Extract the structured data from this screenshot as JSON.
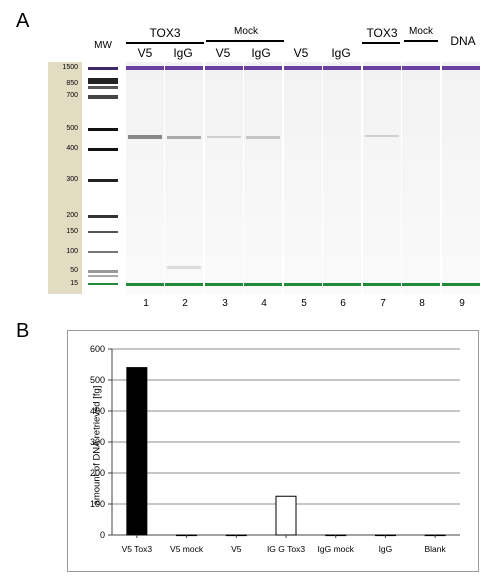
{
  "panel_a": {
    "letter": "A",
    "headers": {
      "mw": "MW",
      "tox3_left": "TOX3",
      "mock_left": "Mock",
      "v5_1": "V5",
      "igg_1": "IgG",
      "v5_2": "V5",
      "igg_2": "IgG",
      "v5_3": "V5",
      "igg_3": "IgG",
      "tox3_right": "TOX3",
      "mock_right": "Mock",
      "dna": "DNA"
    },
    "mw_labels": [
      "1500",
      "850",
      "700",
      "500",
      "400",
      "300",
      "200",
      "150",
      "100",
      "50",
      "15"
    ],
    "lane_numbers": [
      "1",
      "2",
      "3",
      "4",
      "5",
      "6",
      "7",
      "8",
      "9"
    ],
    "colors": {
      "upper_marker": "#6a3fa0",
      "lower_marker": "#1f8a3a",
      "ladder_bg": "#e2dcc3"
    }
  },
  "panel_b": {
    "letter": "B",
    "chart_data": {
      "type": "bar",
      "categories": [
        "V5 Tox3",
        "V5 mock",
        "V5",
        "IG G Tox3",
        "IgG mock",
        "IgG",
        "Blank"
      ],
      "values": [
        540,
        0,
        0,
        125,
        0,
        0,
        0
      ],
      "ylabel": "amount of DNA retrieved [fg]",
      "xlabel": "",
      "ylim": [
        0,
        600
      ],
      "yticks": [
        "0",
        "100",
        "200",
        "300",
        "400",
        "500",
        "600"
      ],
      "grid": true,
      "bar_fills": [
        "#000000",
        "#ffffff",
        "#ffffff",
        "#ffffff",
        "#ffffff",
        "#ffffff",
        "#ffffff"
      ]
    }
  }
}
